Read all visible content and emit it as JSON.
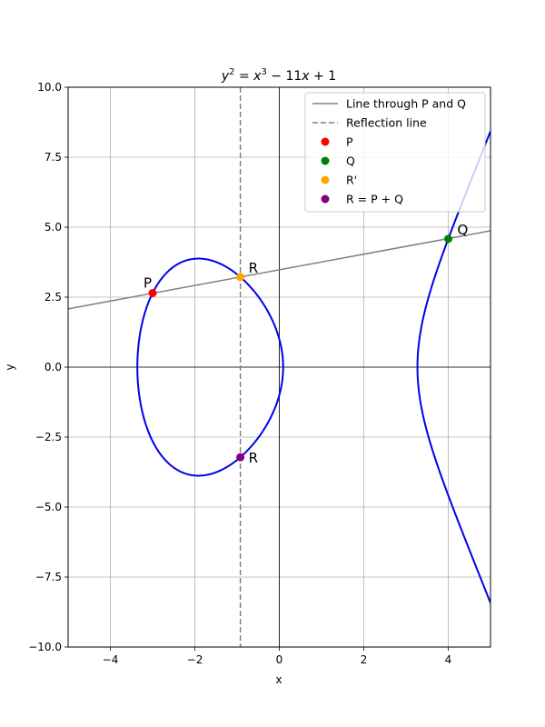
{
  "chart_data": {
    "type": "line",
    "title": "y² = x³ − 11x + 1",
    "title_parts": {
      "y": "y",
      "exp2": "2",
      "eq": " = ",
      "x": "x",
      "exp3": "3",
      "rest": " − 11",
      "x2": "x",
      "tail": " + 1"
    },
    "xlabel": "x",
    "ylabel": "y",
    "xlim": [
      -5,
      5
    ],
    "ylim": [
      -10,
      10
    ],
    "grid": true,
    "legend_position": "top-right",
    "x_ticks": [
      -4,
      -2,
      0,
      2,
      4
    ],
    "x_tick_labels": [
      "−4",
      "−2",
      "0",
      "2",
      "4"
    ],
    "y_ticks": [
      -10,
      -7.5,
      -5,
      -2.5,
      0,
      2.5,
      5,
      7.5,
      10
    ],
    "y_tick_labels": [
      "−10.0",
      "−7.5",
      "−5.0",
      "−2.5",
      "0.0",
      "2.5",
      "5.0",
      "7.5",
      "10.0"
    ],
    "curve": {
      "a": -11,
      "b": 1,
      "color": "#0000ee"
    },
    "secant_line": {
      "name": "Line through P and Q",
      "color": "#808080",
      "slope": 0.2789,
      "intercept": 3.4773
    },
    "reflection_line": {
      "name": "Reflection line",
      "color": "#808080",
      "x": -0.922
    },
    "points": [
      {
        "name": "P",
        "label": "P",
        "x": -3,
        "y": 2.646,
        "color": "#ff0000"
      },
      {
        "name": "Q",
        "label": "Q",
        "x": 4,
        "y": 4.583,
        "color": "#008000"
      },
      {
        "name": "R'",
        "label": "R",
        "x": -0.922,
        "y": 3.22,
        "color": "#ffa500"
      },
      {
        "name": "R = P + Q",
        "label": "R",
        "x": -0.922,
        "y": -3.22,
        "color": "#800080"
      }
    ],
    "legend": [
      "Line through P and Q",
      "Reflection line",
      "P",
      "Q",
      "R'",
      "R = P + Q"
    ]
  }
}
